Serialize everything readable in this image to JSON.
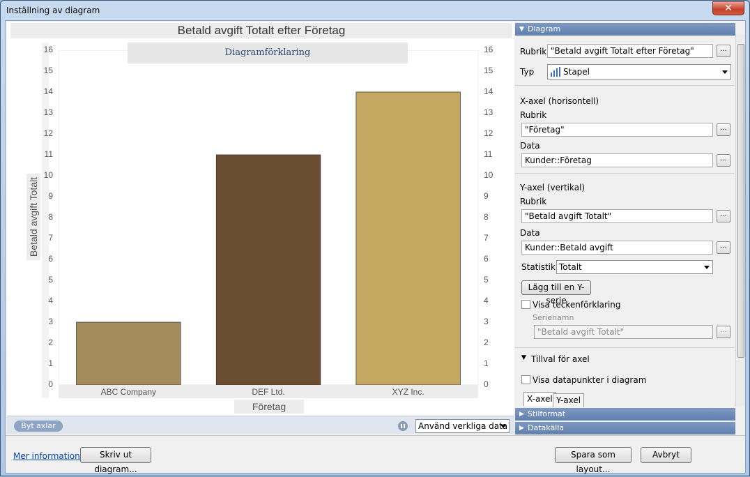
{
  "window": {
    "title": "Inställning av diagram",
    "close_glyph": "✕"
  },
  "chart": {
    "title": "Betald avgift Totalt efter Företag",
    "legend_title": "Diagramförklaring",
    "ylabel": "Betald avgift Totalt",
    "xlabel": "Företag"
  },
  "chart_data": {
    "type": "bar",
    "title": "Betald avgift Totalt efter Företag",
    "xlabel": "Företag",
    "ylabel": "Betald avgift Totalt",
    "categories": [
      "ABC Company",
      "DEF Ltd.",
      "XYZ Inc."
    ],
    "values": [
      3,
      11,
      14
    ],
    "colors": [
      "#a48b5c",
      "#6b4d31",
      "#c4a862"
    ],
    "ylim": [
      0,
      16
    ],
    "yticks": [
      "0",
      "1",
      "2",
      "3",
      "4",
      "5",
      "6",
      "7",
      "8",
      "9",
      "10",
      "11",
      "12",
      "13",
      "14",
      "15",
      "16"
    ],
    "secondary_y_axis": true,
    "grid": false,
    "legend": "top"
  },
  "chartbar": {
    "swap_axes": "Byt axlar",
    "data_mode": "Använd verkliga data"
  },
  "footer": {
    "more_info": "Mer information...",
    "print_chart": "Skriv ut diagram...",
    "save_layout": "Spara som layout...",
    "cancel": "Avbryt"
  },
  "panel": {
    "diagram_section": "Diagram",
    "rubrik_label": "Rubrik",
    "rubrik_value": "\"Betald avgift Totalt efter Företag\"",
    "typ_label": "Typ",
    "typ_value": "Stapel",
    "ellipsis": "...",
    "x_axis": {
      "heading": "X-axel (horisontell)",
      "rubrik_label": "Rubrik",
      "rubrik_value": "\"Företag\"",
      "data_label": "Data",
      "data_value": "Kunder::Företag"
    },
    "y_axis": {
      "heading": "Y-axel (vertikal)",
      "rubrik_label": "Rubrik",
      "rubrik_value": "\"Betald avgift Totalt\"",
      "data_label": "Data",
      "data_value": "Kunder::Betald avgift",
      "stat_label": "Statistik",
      "stat_value": "Totalt",
      "add_series": "Lägg till en Y-serie",
      "show_legend": "Visa teckenförklaring",
      "series_name_label": "Serienamn",
      "series_name_value": "\"Betald avgift Totalt\""
    },
    "axis_options": "Tillval för axel",
    "show_points": "Visa datapunkter i diagram",
    "tabs": [
      "X-axel",
      "Y-axel"
    ],
    "style_section": "Stilformat",
    "source_section": "Datakälla"
  }
}
